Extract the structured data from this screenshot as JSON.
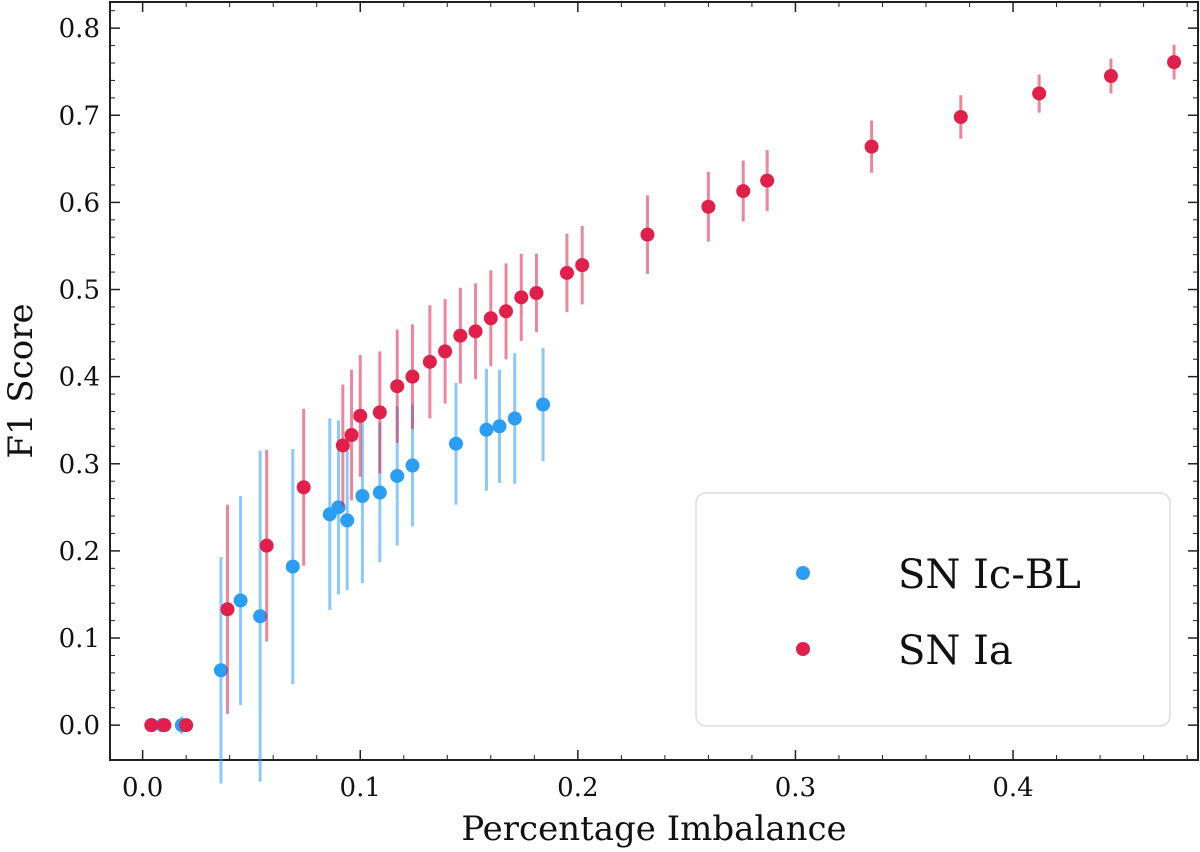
{
  "chart_data": {
    "type": "scatter",
    "title": "",
    "xlabel": "Percentage Imbalance",
    "ylabel": "F1 Score",
    "xlim": [
      -0.015,
      0.485
    ],
    "ylim": [
      -0.04,
      0.83
    ],
    "xticks": [
      "0.0",
      "0.1",
      "0.2",
      "0.3",
      "0.4"
    ],
    "yticks": [
      "0.0",
      "0.1",
      "0.2",
      "0.3",
      "0.4",
      "0.5",
      "0.6",
      "0.7",
      "0.8"
    ],
    "grid": false,
    "legend_position": "lower-right",
    "series": [
      {
        "name": "SN Ic-BL",
        "color": "#2a9df4",
        "points": [
          {
            "x": 0.004,
            "y": 0.0,
            "err": 0.0
          },
          {
            "x": 0.009,
            "y": 0.0,
            "err": 0.0
          },
          {
            "x": 0.018,
            "y": 0.0,
            "err": 0.01
          },
          {
            "x": 0.036,
            "y": 0.063,
            "err": 0.13
          },
          {
            "x": 0.045,
            "y": 0.143,
            "err": 0.12
          },
          {
            "x": 0.054,
            "y": 0.125,
            "err": 0.19
          },
          {
            "x": 0.069,
            "y": 0.182,
            "err": 0.135
          },
          {
            "x": 0.086,
            "y": 0.242,
            "err": 0.11
          },
          {
            "x": 0.09,
            "y": 0.25,
            "err": 0.1
          },
          {
            "x": 0.094,
            "y": 0.235,
            "err": 0.08
          },
          {
            "x": 0.101,
            "y": 0.263,
            "err": 0.1
          },
          {
            "x": 0.109,
            "y": 0.267,
            "err": 0.08
          },
          {
            "x": 0.117,
            "y": 0.286,
            "err": 0.08
          },
          {
            "x": 0.124,
            "y": 0.298,
            "err": 0.07
          },
          {
            "x": 0.144,
            "y": 0.323,
            "err": 0.07
          },
          {
            "x": 0.158,
            "y": 0.339,
            "err": 0.07
          },
          {
            "x": 0.164,
            "y": 0.343,
            "err": 0.065
          },
          {
            "x": 0.171,
            "y": 0.352,
            "err": 0.075
          },
          {
            "x": 0.184,
            "y": 0.368,
            "err": 0.065
          }
        ]
      },
      {
        "name": "SN Ia",
        "color": "#e0204a",
        "points": [
          {
            "x": 0.004,
            "y": 0.0,
            "err": 0.0
          },
          {
            "x": 0.01,
            "y": 0.0,
            "err": 0.0
          },
          {
            "x": 0.02,
            "y": 0.0,
            "err": 0.0
          },
          {
            "x": 0.039,
            "y": 0.133,
            "err": 0.12
          },
          {
            "x": 0.057,
            "y": 0.206,
            "err": 0.11
          },
          {
            "x": 0.074,
            "y": 0.273,
            "err": 0.09
          },
          {
            "x": 0.092,
            "y": 0.321,
            "err": 0.07
          },
          {
            "x": 0.096,
            "y": 0.333,
            "err": 0.075
          },
          {
            "x": 0.1,
            "y": 0.355,
            "err": 0.07
          },
          {
            "x": 0.109,
            "y": 0.359,
            "err": 0.07
          },
          {
            "x": 0.117,
            "y": 0.389,
            "err": 0.065
          },
          {
            "x": 0.124,
            "y": 0.4,
            "err": 0.06
          },
          {
            "x": 0.132,
            "y": 0.417,
            "err": 0.065
          },
          {
            "x": 0.139,
            "y": 0.429,
            "err": 0.06
          },
          {
            "x": 0.146,
            "y": 0.447,
            "err": 0.055
          },
          {
            "x": 0.153,
            "y": 0.452,
            "err": 0.055
          },
          {
            "x": 0.16,
            "y": 0.467,
            "err": 0.055
          },
          {
            "x": 0.167,
            "y": 0.475,
            "err": 0.055
          },
          {
            "x": 0.174,
            "y": 0.491,
            "err": 0.05
          },
          {
            "x": 0.181,
            "y": 0.496,
            "err": 0.045
          },
          {
            "x": 0.195,
            "y": 0.519,
            "err": 0.045
          },
          {
            "x": 0.202,
            "y": 0.528,
            "err": 0.045
          },
          {
            "x": 0.232,
            "y": 0.563,
            "err": 0.045
          },
          {
            "x": 0.26,
            "y": 0.595,
            "err": 0.04
          },
          {
            "x": 0.276,
            "y": 0.613,
            "err": 0.035
          },
          {
            "x": 0.287,
            "y": 0.625,
            "err": 0.035
          },
          {
            "x": 0.335,
            "y": 0.664,
            "err": 0.03
          },
          {
            "x": 0.376,
            "y": 0.698,
            "err": 0.025
          },
          {
            "x": 0.412,
            "y": 0.725,
            "err": 0.022
          },
          {
            "x": 0.445,
            "y": 0.745,
            "err": 0.02
          },
          {
            "x": 0.474,
            "y": 0.761,
            "err": 0.02
          }
        ]
      }
    ]
  }
}
